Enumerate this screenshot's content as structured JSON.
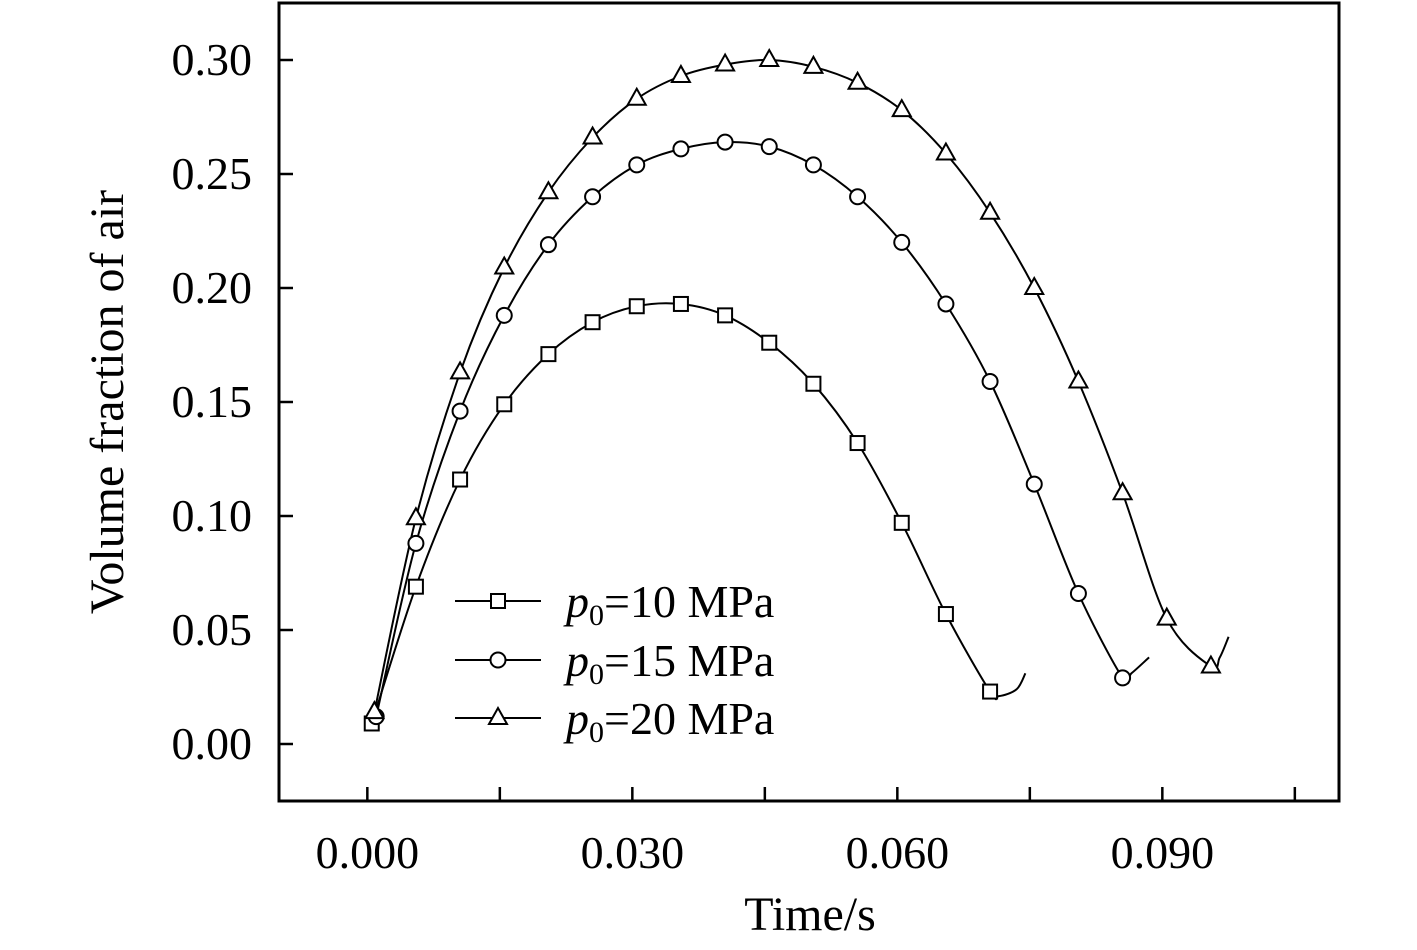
{
  "chart_data": {
    "type": "line",
    "title": "",
    "xlabel": "Time/s",
    "ylabel": "Volume fraction of air",
    "xlim": [
      -0.01,
      0.11
    ],
    "ylim": [
      -0.025,
      0.325
    ],
    "xticks": [
      0.0,
      0.03,
      0.06,
      0.09
    ],
    "xtick_labels": [
      "0.000",
      "0.030",
      "0.060",
      "0.090"
    ],
    "xticks_minor": [
      0.015,
      0.045,
      0.075,
      0.105
    ],
    "yticks": [
      0.0,
      0.05,
      0.1,
      0.15,
      0.2,
      0.25,
      0.3
    ],
    "ytick_labels": [
      "0.00",
      "0.05",
      "0.10",
      "0.15",
      "0.20",
      "0.25",
      "0.30"
    ],
    "legend_position": "bottom-left",
    "series": [
      {
        "name": "p0=10 MPa",
        "legend_italic": "p",
        "legend_sub": "0",
        "legend_rest": "=10 MPa",
        "marker": "square",
        "points": [
          [
            0.0005,
            0.009
          ],
          [
            0.0055,
            0.069
          ],
          [
            0.0105,
            0.116
          ],
          [
            0.0155,
            0.149
          ],
          [
            0.0205,
            0.171
          ],
          [
            0.0255,
            0.185
          ],
          [
            0.0305,
            0.192
          ],
          [
            0.0355,
            0.193
          ],
          [
            0.0405,
            0.188
          ],
          [
            0.0455,
            0.176
          ],
          [
            0.0505,
            0.158
          ],
          [
            0.0555,
            0.132
          ],
          [
            0.0605,
            0.097
          ],
          [
            0.0655,
            0.057
          ],
          [
            0.0705,
            0.023
          ]
        ],
        "curve_end": [
          [
            0.0715,
            0.021
          ],
          [
            0.0735,
            0.024
          ],
          [
            0.0745,
            0.031
          ]
        ]
      },
      {
        "name": "p0=15 MPa",
        "legend_italic": "p",
        "legend_sub": "0",
        "legend_rest": "=15 MPa",
        "marker": "circle",
        "points": [
          [
            0.001,
            0.012
          ],
          [
            0.0055,
            0.088
          ],
          [
            0.0105,
            0.146
          ],
          [
            0.0155,
            0.188
          ],
          [
            0.0205,
            0.219
          ],
          [
            0.0255,
            0.24
          ],
          [
            0.0305,
            0.254
          ],
          [
            0.0355,
            0.261
          ],
          [
            0.0405,
            0.264
          ],
          [
            0.0455,
            0.262
          ],
          [
            0.0505,
            0.254
          ],
          [
            0.0555,
            0.24
          ],
          [
            0.0605,
            0.22
          ],
          [
            0.0655,
            0.193
          ],
          [
            0.0705,
            0.159
          ],
          [
            0.0755,
            0.114
          ],
          [
            0.0805,
            0.066
          ],
          [
            0.0855,
            0.029
          ]
        ],
        "curve_end": [
          [
            0.0865,
            0.031
          ],
          [
            0.0885,
            0.038
          ]
        ]
      },
      {
        "name": "p0=20 MPa",
        "legend_italic": "p",
        "legend_sub": "0",
        "legend_rest": "=20 MPa",
        "marker": "triangle",
        "points": [
          [
            0.0008,
            0.014
          ],
          [
            0.0055,
            0.099
          ],
          [
            0.0105,
            0.163
          ],
          [
            0.0155,
            0.209
          ],
          [
            0.0205,
            0.242
          ],
          [
            0.0255,
            0.266
          ],
          [
            0.0305,
            0.283
          ],
          [
            0.0355,
            0.293
          ],
          [
            0.0405,
            0.298
          ],
          [
            0.0455,
            0.3
          ],
          [
            0.0505,
            0.297
          ],
          [
            0.0555,
            0.29
          ],
          [
            0.0605,
            0.278
          ],
          [
            0.0655,
            0.259
          ],
          [
            0.0705,
            0.233
          ],
          [
            0.0755,
            0.2
          ],
          [
            0.0805,
            0.159
          ],
          [
            0.0855,
            0.11
          ],
          [
            0.0905,
            0.055
          ],
          [
            0.0955,
            0.034
          ]
        ],
        "curve_end": [
          [
            0.0965,
            0.038
          ],
          [
            0.0975,
            0.047
          ]
        ]
      }
    ]
  }
}
